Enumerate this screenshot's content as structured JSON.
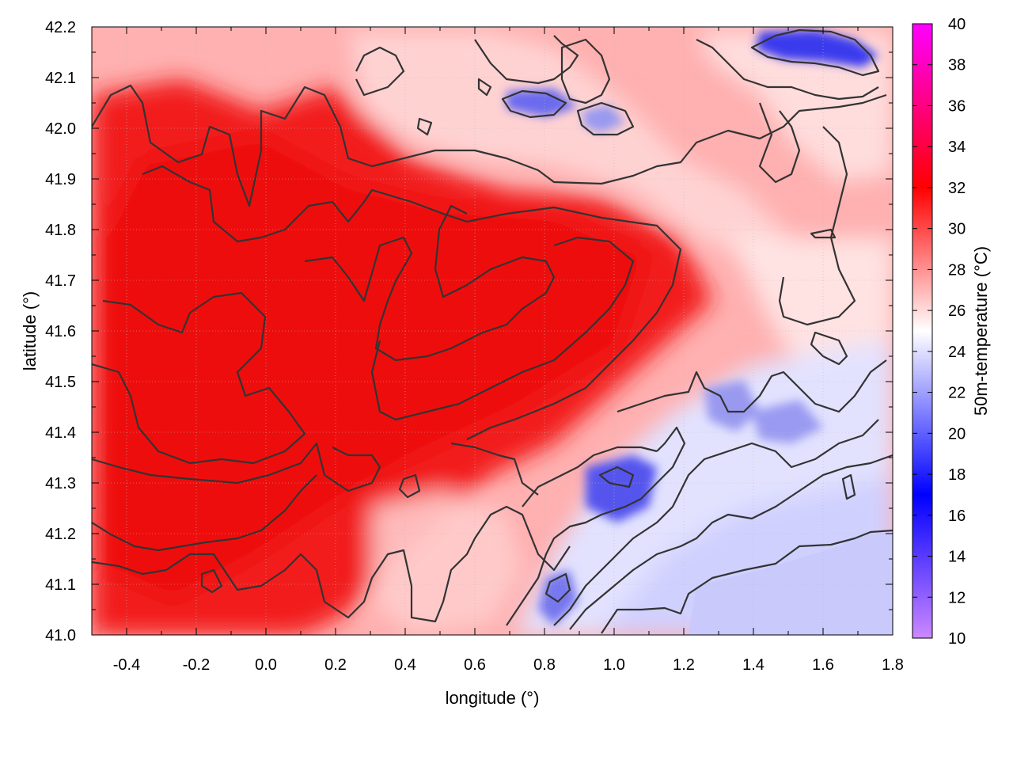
{
  "chart_data": {
    "type": "heatmap",
    "title": "",
    "xlabel": "longitude (°)",
    "ylabel": "latitude (°)",
    "colorbar_label": "50m-temperature (°C)",
    "xlim": [
      -0.5,
      1.8
    ],
    "ylim": [
      41.0,
      42.2
    ],
    "x_ticks": [
      "-0.4",
      "-0.2",
      "0.0",
      "0.2",
      "0.4",
      "0.6",
      "0.8",
      "1.0",
      "1.2",
      "1.4",
      "1.6",
      "1.8"
    ],
    "y_ticks": [
      "41.0",
      "41.1",
      "41.2",
      "41.3",
      "41.4",
      "41.5",
      "41.6",
      "41.7",
      "41.8",
      "41.9",
      "42.0",
      "42.1",
      "42.2"
    ],
    "colorbar_range": [
      10,
      40
    ],
    "colorbar_ticks": [
      "10",
      "12",
      "14",
      "16",
      "18",
      "20",
      "22",
      "24",
      "26",
      "28",
      "30",
      "32",
      "34",
      "36",
      "38",
      "40"
    ],
    "colormap": [
      {
        "value": 10,
        "color": "#cc88ff"
      },
      {
        "value": 17,
        "color": "#0000ff"
      },
      {
        "value": 25,
        "color": "#ffffff"
      },
      {
        "value": 32,
        "color": "#ff0000"
      },
      {
        "value": 40,
        "color": "#ff00ff"
      }
    ],
    "grid": true,
    "contours": true,
    "contour_color": "#333333",
    "background_field_color": "#ffffff"
  }
}
